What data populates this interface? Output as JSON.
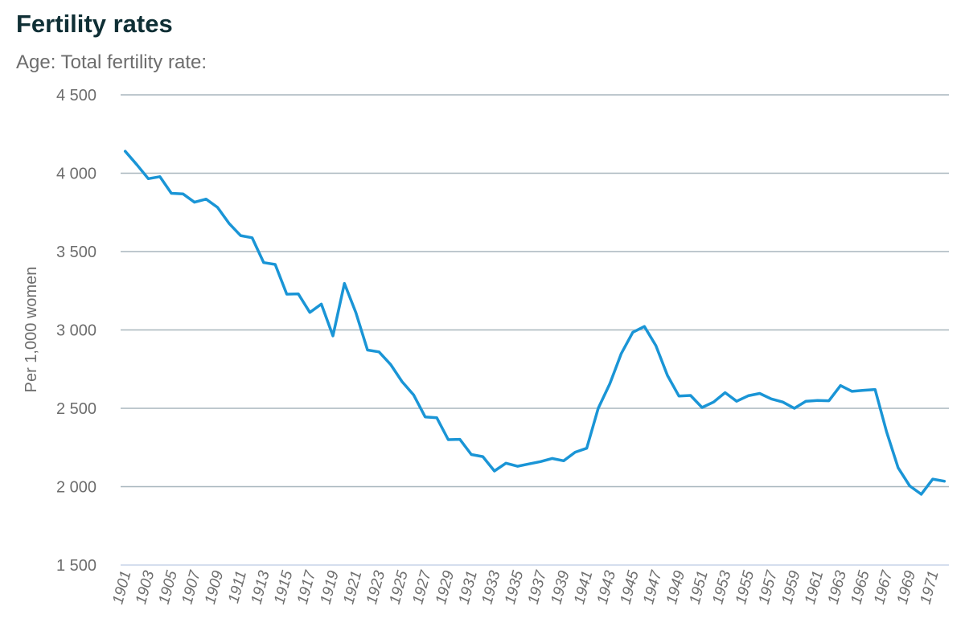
{
  "header": {
    "title": "Fertility rates",
    "subtitle": "Age: Total fertility rate:"
  },
  "colors": {
    "title": "#0f2f35",
    "series": "#1a95d6",
    "grid": "#a8b6bd",
    "text": "#6d6d6d"
  },
  "chart_data": {
    "type": "line",
    "title": "Fertility rates",
    "subtitle": "Age: Total fertility rate:",
    "xlabel": "",
    "ylabel": "Per 1,000 women",
    "ylim": [
      1500,
      4500
    ],
    "yticks": [
      1500,
      2000,
      2500,
      3000,
      3500,
      4000,
      4500
    ],
    "ytick_labels": [
      "1 500",
      "2 000",
      "2 500",
      "3 000",
      "3 500",
      "4 000",
      "4 500"
    ],
    "xtick_labels": [
      "1901",
      "1903",
      "1905",
      "1907",
      "1909",
      "1911",
      "1913",
      "1915",
      "1917",
      "1919",
      "1921",
      "1923",
      "1925",
      "1927",
      "1929",
      "1931",
      "1933",
      "1935",
      "1937",
      "1939",
      "1941",
      "1943",
      "1945",
      "1947",
      "1949",
      "1951",
      "1953",
      "1955",
      "1957",
      "1959",
      "1961",
      "1963",
      "1965",
      "1967",
      "1969",
      "1971"
    ],
    "grid": true,
    "legend": "none",
    "x": [
      1901,
      1902,
      1903,
      1904,
      1905,
      1906,
      1907,
      1908,
      1909,
      1910,
      1911,
      1912,
      1913,
      1914,
      1915,
      1916,
      1917,
      1918,
      1919,
      1920,
      1921,
      1922,
      1923,
      1924,
      1925,
      1926,
      1927,
      1928,
      1929,
      1930,
      1931,
      1932,
      1933,
      1934,
      1935,
      1936,
      1937,
      1938,
      1939,
      1940,
      1941,
      1942,
      1943,
      1944,
      1945,
      1946,
      1947,
      1948,
      1949,
      1950,
      1951,
      1952,
      1953,
      1954,
      1955,
      1956,
      1957,
      1958,
      1959,
      1960,
      1961,
      1962,
      1963,
      1964,
      1965,
      1966,
      1967,
      1968,
      1969,
      1970,
      1971,
      1972
    ],
    "series": [
      {
        "values": [
          4140,
          4055,
          3965,
          3978,
          3872,
          3868,
          3815,
          3835,
          3782,
          3680,
          3602,
          3588,
          3430,
          3418,
          3228,
          3230,
          3112,
          3165,
          2962,
          3297,
          3110,
          2872,
          2860,
          2780,
          2670,
          2585,
          2445,
          2440,
          2300,
          2302,
          2205,
          2192,
          2100,
          2150,
          2130,
          2145,
          2160,
          2180,
          2165,
          2220,
          2245,
          2500,
          2655,
          2850,
          2985,
          3022,
          2900,
          2710,
          2578,
          2582,
          2505,
          2540,
          2600,
          2545,
          2580,
          2595,
          2560,
          2540,
          2500,
          2545,
          2550,
          2548,
          2645,
          2608,
          2615,
          2620,
          2350,
          2120,
          2005,
          1952,
          2048,
          2035
        ]
      }
    ]
  }
}
